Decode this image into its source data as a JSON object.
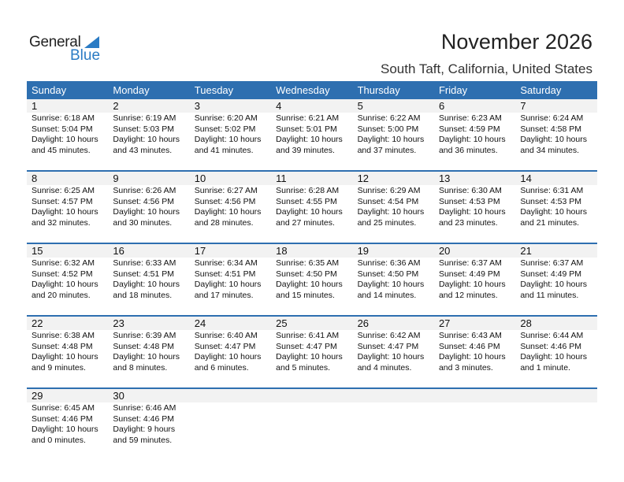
{
  "logo": {
    "general": "General",
    "blue": "Blue"
  },
  "title": "November 2026",
  "location": "South Taft, California, United States",
  "colors": {
    "header": "#2e6fb0",
    "accent": "#2a7bc4",
    "strip": "#f2f2f2"
  },
  "days_of_week": [
    "Sunday",
    "Monday",
    "Tuesday",
    "Wednesday",
    "Thursday",
    "Friday",
    "Saturday"
  ],
  "weeks": [
    [
      {
        "day": "1",
        "sunrise": "Sunrise: 6:18 AM",
        "sunset": "Sunset: 5:04 PM",
        "daylight": "Daylight: 10 hours",
        "minutes": "and 45 minutes."
      },
      {
        "day": "2",
        "sunrise": "Sunrise: 6:19 AM",
        "sunset": "Sunset: 5:03 PM",
        "daylight": "Daylight: 10 hours",
        "minutes": "and 43 minutes."
      },
      {
        "day": "3",
        "sunrise": "Sunrise: 6:20 AM",
        "sunset": "Sunset: 5:02 PM",
        "daylight": "Daylight: 10 hours",
        "minutes": "and 41 minutes."
      },
      {
        "day": "4",
        "sunrise": "Sunrise: 6:21 AM",
        "sunset": "Sunset: 5:01 PM",
        "daylight": "Daylight: 10 hours",
        "minutes": "and 39 minutes."
      },
      {
        "day": "5",
        "sunrise": "Sunrise: 6:22 AM",
        "sunset": "Sunset: 5:00 PM",
        "daylight": "Daylight: 10 hours",
        "minutes": "and 37 minutes."
      },
      {
        "day": "6",
        "sunrise": "Sunrise: 6:23 AM",
        "sunset": "Sunset: 4:59 PM",
        "daylight": "Daylight: 10 hours",
        "minutes": "and 36 minutes."
      },
      {
        "day": "7",
        "sunrise": "Sunrise: 6:24 AM",
        "sunset": "Sunset: 4:58 PM",
        "daylight": "Daylight: 10 hours",
        "minutes": "and 34 minutes."
      }
    ],
    [
      {
        "day": "8",
        "sunrise": "Sunrise: 6:25 AM",
        "sunset": "Sunset: 4:57 PM",
        "daylight": "Daylight: 10 hours",
        "minutes": "and 32 minutes."
      },
      {
        "day": "9",
        "sunrise": "Sunrise: 6:26 AM",
        "sunset": "Sunset: 4:56 PM",
        "daylight": "Daylight: 10 hours",
        "minutes": "and 30 minutes."
      },
      {
        "day": "10",
        "sunrise": "Sunrise: 6:27 AM",
        "sunset": "Sunset: 4:56 PM",
        "daylight": "Daylight: 10 hours",
        "minutes": "and 28 minutes."
      },
      {
        "day": "11",
        "sunrise": "Sunrise: 6:28 AM",
        "sunset": "Sunset: 4:55 PM",
        "daylight": "Daylight: 10 hours",
        "minutes": "and 27 minutes."
      },
      {
        "day": "12",
        "sunrise": "Sunrise: 6:29 AM",
        "sunset": "Sunset: 4:54 PM",
        "daylight": "Daylight: 10 hours",
        "minutes": "and 25 minutes."
      },
      {
        "day": "13",
        "sunrise": "Sunrise: 6:30 AM",
        "sunset": "Sunset: 4:53 PM",
        "daylight": "Daylight: 10 hours",
        "minutes": "and 23 minutes."
      },
      {
        "day": "14",
        "sunrise": "Sunrise: 6:31 AM",
        "sunset": "Sunset: 4:53 PM",
        "daylight": "Daylight: 10 hours",
        "minutes": "and 21 minutes."
      }
    ],
    [
      {
        "day": "15",
        "sunrise": "Sunrise: 6:32 AM",
        "sunset": "Sunset: 4:52 PM",
        "daylight": "Daylight: 10 hours",
        "minutes": "and 20 minutes."
      },
      {
        "day": "16",
        "sunrise": "Sunrise: 6:33 AM",
        "sunset": "Sunset: 4:51 PM",
        "daylight": "Daylight: 10 hours",
        "minutes": "and 18 minutes."
      },
      {
        "day": "17",
        "sunrise": "Sunrise: 6:34 AM",
        "sunset": "Sunset: 4:51 PM",
        "daylight": "Daylight: 10 hours",
        "minutes": "and 17 minutes."
      },
      {
        "day": "18",
        "sunrise": "Sunrise: 6:35 AM",
        "sunset": "Sunset: 4:50 PM",
        "daylight": "Daylight: 10 hours",
        "minutes": "and 15 minutes."
      },
      {
        "day": "19",
        "sunrise": "Sunrise: 6:36 AM",
        "sunset": "Sunset: 4:50 PM",
        "daylight": "Daylight: 10 hours",
        "minutes": "and 14 minutes."
      },
      {
        "day": "20",
        "sunrise": "Sunrise: 6:37 AM",
        "sunset": "Sunset: 4:49 PM",
        "daylight": "Daylight: 10 hours",
        "minutes": "and 12 minutes."
      },
      {
        "day": "21",
        "sunrise": "Sunrise: 6:37 AM",
        "sunset": "Sunset: 4:49 PM",
        "daylight": "Daylight: 10 hours",
        "minutes": "and 11 minutes."
      }
    ],
    [
      {
        "day": "22",
        "sunrise": "Sunrise: 6:38 AM",
        "sunset": "Sunset: 4:48 PM",
        "daylight": "Daylight: 10 hours",
        "minutes": "and 9 minutes."
      },
      {
        "day": "23",
        "sunrise": "Sunrise: 6:39 AM",
        "sunset": "Sunset: 4:48 PM",
        "daylight": "Daylight: 10 hours",
        "minutes": "and 8 minutes."
      },
      {
        "day": "24",
        "sunrise": "Sunrise: 6:40 AM",
        "sunset": "Sunset: 4:47 PM",
        "daylight": "Daylight: 10 hours",
        "minutes": "and 6 minutes."
      },
      {
        "day": "25",
        "sunrise": "Sunrise: 6:41 AM",
        "sunset": "Sunset: 4:47 PM",
        "daylight": "Daylight: 10 hours",
        "minutes": "and 5 minutes."
      },
      {
        "day": "26",
        "sunrise": "Sunrise: 6:42 AM",
        "sunset": "Sunset: 4:47 PM",
        "daylight": "Daylight: 10 hours",
        "minutes": "and 4 minutes."
      },
      {
        "day": "27",
        "sunrise": "Sunrise: 6:43 AM",
        "sunset": "Sunset: 4:46 PM",
        "daylight": "Daylight: 10 hours",
        "minutes": "and 3 minutes."
      },
      {
        "day": "28",
        "sunrise": "Sunrise: 6:44 AM",
        "sunset": "Sunset: 4:46 PM",
        "daylight": "Daylight: 10 hours",
        "minutes": "and 1 minute."
      }
    ],
    [
      {
        "day": "29",
        "sunrise": "Sunrise: 6:45 AM",
        "sunset": "Sunset: 4:46 PM",
        "daylight": "Daylight: 10 hours",
        "minutes": "and 0 minutes."
      },
      {
        "day": "30",
        "sunrise": "Sunrise: 6:46 AM",
        "sunset": "Sunset: 4:46 PM",
        "daylight": "Daylight: 9 hours",
        "minutes": "and 59 minutes."
      }
    ]
  ]
}
